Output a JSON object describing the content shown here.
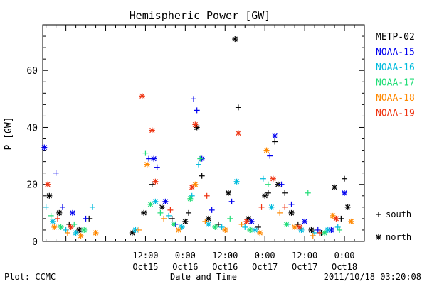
{
  "chart_data": {
    "type": "scatter",
    "title": "Hemispheric Power [GW]",
    "ylabel": "P [GW]",
    "xlabel": "Date and Time",
    "ylim": [
      0,
      76
    ],
    "xlim": [
      "2011-10-14 05:00",
      "2011-10-18 06:00"
    ],
    "x_ticks": [
      {
        "value": "2011-10-15 12:00",
        "time": "12:00",
        "date": "Oct15"
      },
      {
        "value": "2011-10-16 00:00",
        "time": "0:00",
        "date": "Oct16"
      },
      {
        "value": "2011-10-16 12:00",
        "time": "12:00",
        "date": "Oct16"
      },
      {
        "value": "2011-10-17 00:00",
        "time": "0:00",
        "date": "Oct17"
      },
      {
        "value": "2011-10-17 12:00",
        "time": "12:00",
        "date": "Oct17"
      },
      {
        "value": "2011-10-18 00:00",
        "time": "0:00",
        "date": "Oct18"
      }
    ],
    "y_ticks": [
      0,
      20,
      40,
      60
    ],
    "legend_placement": "right",
    "marker_legend": [
      {
        "symbol": "+",
        "label": "south"
      },
      {
        "symbol": "*",
        "label": "north"
      }
    ],
    "series": [
      {
        "name": "METP-02",
        "color": "#000000",
        "points": [
          {
            "x": "2011-10-14 07:00",
            "y": 16,
            "m": "*"
          },
          {
            "x": "2011-10-14 10:00",
            "y": 10,
            "m": "*"
          },
          {
            "x": "2011-10-14 13:00",
            "y": 6,
            "m": "+"
          },
          {
            "x": "2011-10-14 16:00",
            "y": 4,
            "m": "*"
          },
          {
            "x": "2011-10-14 19:00",
            "y": 8,
            "m": "+"
          },
          {
            "x": "2011-10-15 08:00",
            "y": 3,
            "m": "*"
          },
          {
            "x": "2011-10-15 11:30",
            "y": 10,
            "m": "*"
          },
          {
            "x": "2011-10-15 14:00",
            "y": 20,
            "m": "+"
          },
          {
            "x": "2011-10-15 17:00",
            "y": 12,
            "m": "*"
          },
          {
            "x": "2011-10-15 20:00",
            "y": 8,
            "m": "+"
          },
          {
            "x": "2011-10-16 00:00",
            "y": 7,
            "m": "*"
          },
          {
            "x": "2011-10-16 01:00",
            "y": 10,
            "m": "+"
          },
          {
            "x": "2011-10-16 03:30",
            "y": 40,
            "m": "*"
          },
          {
            "x": "2011-10-16 05:00",
            "y": 23,
            "m": "+"
          },
          {
            "x": "2011-10-16 07:00",
            "y": 8,
            "m": "*"
          },
          {
            "x": "2011-10-16 10:00",
            "y": 6,
            "m": "+"
          },
          {
            "x": "2011-10-16 13:00",
            "y": 17,
            "m": "*"
          },
          {
            "x": "2011-10-16 15:00",
            "y": 71,
            "m": "*"
          },
          {
            "x": "2011-10-16 16:00",
            "y": 47,
            "m": "+"
          },
          {
            "x": "2011-10-16 19:00",
            "y": 8,
            "m": "*"
          },
          {
            "x": "2011-10-16 22:00",
            "y": 5,
            "m": "+"
          },
          {
            "x": "2011-10-17 00:00",
            "y": 16,
            "m": "*"
          },
          {
            "x": "2011-10-17 01:00",
            "y": 17,
            "m": "+"
          },
          {
            "x": "2011-10-17 03:00",
            "y": 35,
            "m": "+"
          },
          {
            "x": "2011-10-17 04:00",
            "y": 20,
            "m": "*"
          },
          {
            "x": "2011-10-17 06:00",
            "y": 17,
            "m": "+"
          },
          {
            "x": "2011-10-17 08:00",
            "y": 10,
            "m": "*"
          },
          {
            "x": "2011-10-17 10:00",
            "y": 6,
            "m": "+"
          },
          {
            "x": "2011-10-17 14:00",
            "y": 4,
            "m": "*"
          },
          {
            "x": "2011-10-17 17:00",
            "y": 3,
            "m": "+"
          },
          {
            "x": "2011-10-17 21:00",
            "y": 19,
            "m": "*"
          },
          {
            "x": "2011-10-17 23:00",
            "y": 8,
            "m": "+"
          },
          {
            "x": "2011-10-18 00:00",
            "y": 22,
            "m": "+"
          },
          {
            "x": "2011-10-18 01:00",
            "y": 12,
            "m": "*"
          }
        ]
      },
      {
        "name": "NOAA-15",
        "color": "#0000ee",
        "points": [
          {
            "x": "2011-10-14 05:30",
            "y": 33,
            "m": "*"
          },
          {
            "x": "2011-10-14 09:00",
            "y": 24,
            "m": "+"
          },
          {
            "x": "2011-10-14 11:00",
            "y": 12,
            "m": "+"
          },
          {
            "x": "2011-10-14 14:00",
            "y": 10,
            "m": "*"
          },
          {
            "x": "2011-10-14 18:00",
            "y": 8,
            "m": "+"
          },
          {
            "x": "2011-10-15 13:00",
            "y": 29,
            "m": "+"
          },
          {
            "x": "2011-10-15 14:30",
            "y": 29,
            "m": "*"
          },
          {
            "x": "2011-10-15 15:30",
            "y": 26,
            "m": "+"
          },
          {
            "x": "2011-10-15 18:00",
            "y": 14,
            "m": "*"
          },
          {
            "x": "2011-10-15 21:00",
            "y": 6,
            "m": "+"
          },
          {
            "x": "2011-10-16 02:30",
            "y": 50,
            "m": "+"
          },
          {
            "x": "2011-10-16 03:30",
            "y": 46,
            "m": "+"
          },
          {
            "x": "2011-10-16 05:00",
            "y": 29,
            "m": "*"
          },
          {
            "x": "2011-10-16 08:00",
            "y": 11,
            "m": "+"
          },
          {
            "x": "2011-10-16 14:00",
            "y": 14,
            "m": "+"
          },
          {
            "x": "2011-10-16 20:00",
            "y": 7,
            "m": "*"
          },
          {
            "x": "2011-10-17 01:30",
            "y": 30,
            "m": "+"
          },
          {
            "x": "2011-10-17 03:00",
            "y": 37,
            "m": "*"
          },
          {
            "x": "2011-10-17 05:00",
            "y": 20,
            "m": "+"
          },
          {
            "x": "2011-10-17 08:00",
            "y": 13,
            "m": "+"
          },
          {
            "x": "2011-10-17 12:00",
            "y": 7,
            "m": "*"
          },
          {
            "x": "2011-10-17 16:00",
            "y": 4,
            "m": "+"
          },
          {
            "x": "2011-10-17 20:00",
            "y": 4,
            "m": "*"
          },
          {
            "x": "2011-10-18 00:00",
            "y": 17,
            "m": "*"
          }
        ]
      },
      {
        "name": "NOAA-16",
        "color": "#00bbdd",
        "points": [
          {
            "x": "2011-10-14 06:00",
            "y": 12,
            "m": "+"
          },
          {
            "x": "2011-10-14 08:00",
            "y": 7,
            "m": "*"
          },
          {
            "x": "2011-10-14 12:00",
            "y": 4,
            "m": "+"
          },
          {
            "x": "2011-10-14 15:00",
            "y": 3,
            "m": "*"
          },
          {
            "x": "2011-10-14 20:00",
            "y": 12,
            "m": "+"
          },
          {
            "x": "2011-10-15 09:00",
            "y": 4,
            "m": "*"
          },
          {
            "x": "2011-10-15 15:00",
            "y": 14,
            "m": "*"
          },
          {
            "x": "2011-10-15 19:00",
            "y": 9,
            "m": "+"
          },
          {
            "x": "2011-10-15 23:00",
            "y": 5,
            "m": "*"
          },
          {
            "x": "2011-10-16 02:00",
            "y": 16,
            "m": "+"
          },
          {
            "x": "2011-10-16 04:00",
            "y": 27,
            "m": "+"
          },
          {
            "x": "2011-10-16 07:00",
            "y": 6,
            "m": "*"
          },
          {
            "x": "2011-10-16 11:00",
            "y": 5,
            "m": "+"
          },
          {
            "x": "2011-10-16 15:30",
            "y": 21,
            "m": "*"
          },
          {
            "x": "2011-10-16 18:00",
            "y": 5,
            "m": "+"
          },
          {
            "x": "2011-10-16 21:00",
            "y": 4,
            "m": "*"
          },
          {
            "x": "2011-10-16 23:30",
            "y": 22,
            "m": "+"
          },
          {
            "x": "2011-10-17 02:00",
            "y": 12,
            "m": "*"
          },
          {
            "x": "2011-10-17 07:00",
            "y": 6,
            "m": "+"
          },
          {
            "x": "2011-10-17 11:00",
            "y": 4,
            "m": "*"
          },
          {
            "x": "2011-10-17 15:00",
            "y": 3,
            "m": "+"
          },
          {
            "x": "2011-10-17 19:00",
            "y": 4,
            "m": "*"
          },
          {
            "x": "2011-10-17 22:00",
            "y": 5,
            "m": "+"
          }
        ]
      },
      {
        "name": "NOAA-17",
        "color": "#22dd77",
        "points": [
          {
            "x": "2011-10-14 07:30",
            "y": 9,
            "m": "+"
          },
          {
            "x": "2011-10-14 10:30",
            "y": 5,
            "m": "*"
          },
          {
            "x": "2011-10-14 14:30",
            "y": 6,
            "m": "+"
          },
          {
            "x": "2011-10-14 17:30",
            "y": 4,
            "m": "*"
          },
          {
            "x": "2011-10-15 12:00",
            "y": 31,
            "m": "+"
          },
          {
            "x": "2011-10-15 13:30",
            "y": 13,
            "m": "*"
          },
          {
            "x": "2011-10-15 16:30",
            "y": 10,
            "m": "+"
          },
          {
            "x": "2011-10-15 20:30",
            "y": 6,
            "m": "*"
          },
          {
            "x": "2011-10-16 01:30",
            "y": 15,
            "m": "*"
          },
          {
            "x": "2011-10-16 04:30",
            "y": 29,
            "m": "+"
          },
          {
            "x": "2011-10-16 09:00",
            "y": 5,
            "m": "*"
          },
          {
            "x": "2011-10-16 13:30",
            "y": 8,
            "m": "+"
          },
          {
            "x": "2011-10-16 19:30",
            "y": 4,
            "m": "*"
          },
          {
            "x": "2011-10-17 01:00",
            "y": 20,
            "m": "+"
          },
          {
            "x": "2011-10-17 06:30",
            "y": 6,
            "m": "*"
          },
          {
            "x": "2011-10-17 13:00",
            "y": 17,
            "m": "+"
          },
          {
            "x": "2011-10-17 18:00",
            "y": 3,
            "m": "*"
          },
          {
            "x": "2011-10-17 22:30",
            "y": 4,
            "m": "+"
          }
        ]
      },
      {
        "name": "NOAA-18",
        "color": "#ff8800",
        "points": [
          {
            "x": "2011-10-14 08:30",
            "y": 5,
            "m": "*"
          },
          {
            "x": "2011-10-14 12:30",
            "y": 3,
            "m": "+"
          },
          {
            "x": "2011-10-14 16:30",
            "y": 2,
            "m": "*"
          },
          {
            "x": "2011-10-14 21:00",
            "y": 3,
            "m": "*"
          },
          {
            "x": "2011-10-15 10:00",
            "y": 4,
            "m": "+"
          },
          {
            "x": "2011-10-15 12:30",
            "y": 27,
            "m": "*"
          },
          {
            "x": "2011-10-15 17:30",
            "y": 8,
            "m": "+"
          },
          {
            "x": "2011-10-15 22:00",
            "y": 4,
            "m": "*"
          },
          {
            "x": "2011-10-16 03:00",
            "y": 20,
            "m": "*"
          },
          {
            "x": "2011-10-16 06:00",
            "y": 7,
            "m": "+"
          },
          {
            "x": "2011-10-16 12:00",
            "y": 4,
            "m": "*"
          },
          {
            "x": "2011-10-16 17:00",
            "y": 6,
            "m": "+"
          },
          {
            "x": "2011-10-16 22:30",
            "y": 3,
            "m": "*"
          },
          {
            "x": "2011-10-17 00:30",
            "y": 32,
            "m": "*"
          },
          {
            "x": "2011-10-17 04:30",
            "y": 10,
            "m": "+"
          },
          {
            "x": "2011-10-17 09:00",
            "y": 5,
            "m": "*"
          },
          {
            "x": "2011-10-17 14:30",
            "y": 2,
            "m": "+"
          },
          {
            "x": "2011-10-17 20:30",
            "y": 9,
            "m": "*"
          },
          {
            "x": "2011-10-18 02:00",
            "y": 7,
            "m": "*"
          }
        ]
      },
      {
        "name": "NOAA-19",
        "color": "#ee3311",
        "points": [
          {
            "x": "2011-10-14 06:30",
            "y": 20,
            "m": "*"
          },
          {
            "x": "2011-10-14 09:30",
            "y": 8,
            "m": "+"
          },
          {
            "x": "2011-10-14 13:30",
            "y": 5,
            "m": "*"
          },
          {
            "x": "2011-10-15 11:00",
            "y": 51,
            "m": "*"
          },
          {
            "x": "2011-10-15 14:00",
            "y": 39,
            "m": "*"
          },
          {
            "x": "2011-10-15 15:00",
            "y": 21,
            "m": "*"
          },
          {
            "x": "2011-10-15 19:30",
            "y": 11,
            "m": "+"
          },
          {
            "x": "2011-10-16 03:00",
            "y": 41,
            "m": "*"
          },
          {
            "x": "2011-10-16 02:00",
            "y": 19,
            "m": "*"
          },
          {
            "x": "2011-10-16 06:30",
            "y": 16,
            "m": "+"
          },
          {
            "x": "2011-10-16 16:00",
            "y": 38,
            "m": "*"
          },
          {
            "x": "2011-10-16 18:30",
            "y": 7,
            "m": "*"
          },
          {
            "x": "2011-10-16 23:00",
            "y": 12,
            "m": "+"
          },
          {
            "x": "2011-10-17 02:30",
            "y": 22,
            "m": "*"
          },
          {
            "x": "2011-10-17 06:00",
            "y": 12,
            "m": "+"
          },
          {
            "x": "2011-10-17 10:30",
            "y": 5,
            "m": "*"
          },
          {
            "x": "2011-10-17 16:30",
            "y": 3,
            "m": "+"
          },
          {
            "x": "2011-10-17 21:30",
            "y": 8,
            "m": "*"
          }
        ]
      }
    ]
  },
  "footer": {
    "left": "Plot: CCMC",
    "right": "2011/10/18 03:20:08"
  }
}
